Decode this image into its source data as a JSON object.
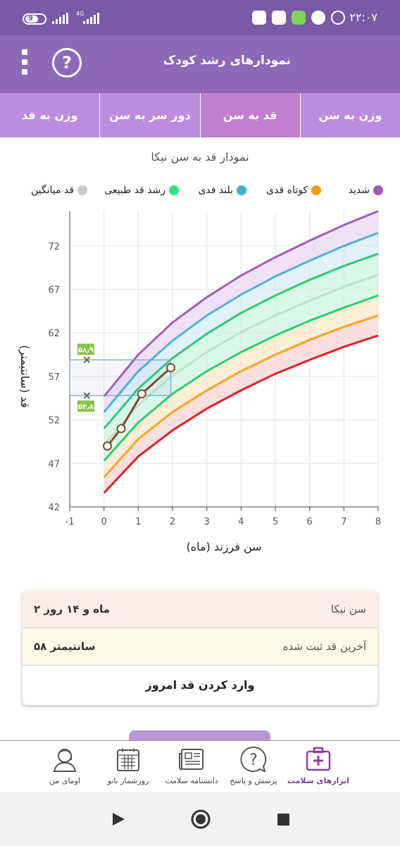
{
  "status_bar": {
    "battery": "9",
    "network": "4G",
    "time": "۲۲:۰۷"
  },
  "app_bar": {
    "title": "نمودارهای رشد کودک",
    "help_icon": "question-circle-icon",
    "menu_icon": "kebab-menu-icon"
  },
  "tabs": [
    {
      "label": "وزن به سن",
      "active": false
    },
    {
      "label": "قد به سن",
      "active": true
    },
    {
      "label": "دور سر به سن",
      "active": false
    },
    {
      "label": "وزن به قد",
      "active": false
    }
  ],
  "chart": {
    "title": "نمودار قد به سن نیکا",
    "ylabel": "قد (سانتیمتر)",
    "xlabel": "سن فرزند (ماه)",
    "legend": [
      {
        "label": "شدید",
        "color": "#9b59b6"
      },
      {
        "label": "کوتاه قدی",
        "color": "#f39c12"
      },
      {
        "label": "بلند قدی",
        "color": "#3fb0d0"
      },
      {
        "label": "رشد قد طبیعی",
        "color": "#2ee57f"
      },
      {
        "label": "قد میانگین",
        "color": "#cccccc"
      }
    ],
    "range_marker": {
      "upper": "۵۸٫۹",
      "lower": "۵۴٫۸"
    }
  },
  "chart_data": {
    "type": "line",
    "x_ticks": [
      -1,
      0,
      1,
      2,
      3,
      4,
      5,
      6,
      7,
      8
    ],
    "y_ticks": [
      42,
      47,
      52,
      57,
      62,
      67,
      72
    ],
    "xlim": [
      -1,
      8
    ],
    "ylim": [
      42,
      76
    ],
    "grid": true,
    "legend_position": "top",
    "x": [
      0,
      1,
      2,
      3,
      4,
      5,
      6,
      7,
      8
    ],
    "series": [
      {
        "name": "شدید",
        "color": "#a05fb8",
        "values": [
          54.7,
          59.5,
          63.2,
          66.1,
          68.6,
          70.7,
          72.6,
          74.4,
          76.0
        ]
      },
      {
        "color": "#4fb2d6",
        "values": [
          52.9,
          57.6,
          61.1,
          64.0,
          66.4,
          68.5,
          70.3,
          72.0,
          73.5
        ]
      },
      {
        "color": "#2ecc71",
        "values": [
          51.0,
          55.6,
          59.1,
          61.9,
          64.3,
          66.3,
          68.1,
          69.7,
          71.1
        ]
      },
      {
        "name": "قد میانگین",
        "color": "#bfe3cc",
        "values": [
          49.1,
          53.7,
          57.1,
          59.8,
          62.1,
          64.0,
          65.7,
          67.3,
          68.7
        ]
      },
      {
        "color": "#2ecc71",
        "values": [
          47.3,
          51.7,
          55.0,
          57.6,
          59.8,
          61.7,
          63.4,
          64.9,
          66.3
        ]
      },
      {
        "color": "#f5a623",
        "values": [
          45.4,
          49.8,
          52.9,
          55.4,
          57.6,
          59.5,
          61.2,
          62.7,
          64.0
        ]
      },
      {
        "color": "#e0222a",
        "values": [
          43.6,
          47.8,
          50.8,
          53.3,
          55.4,
          57.3,
          58.9,
          60.4,
          61.7
        ]
      }
    ],
    "child_points": {
      "x": [
        0.1,
        0.5,
        1.1,
        1.95
      ],
      "y": [
        49.0,
        51.0,
        55.0,
        58.0
      ]
    },
    "range_box": {
      "x": [
        -1,
        1.95
      ],
      "y": [
        54.8,
        58.9
      ]
    }
  },
  "info_card": {
    "age_label": "سن نیکا",
    "age_value": "۲ ماه و ۱۴ روز",
    "height_label": "آخرین قد ثبت شده",
    "height_value": "۵۸ سانتیمتر",
    "action": "وارد کردن قد امروز"
  },
  "bottom_nav": [
    {
      "label": "ابزارهای سلامت",
      "icon": "health-kit-icon",
      "active": true
    },
    {
      "label": "پرسش و پاسخ",
      "icon": "question-bubble-icon",
      "active": false
    },
    {
      "label": "دانشنامه سلامت",
      "icon": "newspaper-icon",
      "active": false
    },
    {
      "label": "روزشمار بانو",
      "icon": "calendar-icon",
      "active": false
    },
    {
      "label": "اومای من",
      "icon": "user-avatar-icon",
      "active": false
    }
  ],
  "system_nav": {
    "back": "play-icon",
    "home": "home-circle-icon",
    "recents": "square-icon"
  }
}
